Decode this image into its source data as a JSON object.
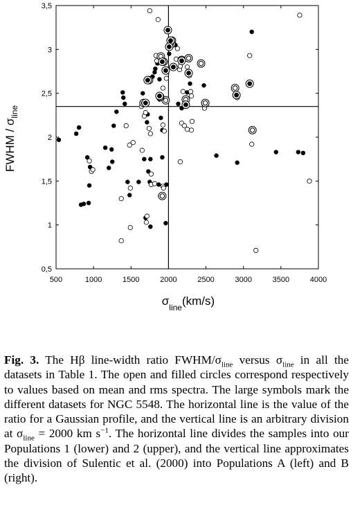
{
  "chart_data": {
    "type": "scatter",
    "ylabel": {
      "main": "FWHM / σ",
      "sub": "line"
    },
    "xlabel": {
      "main": "σ",
      "sub": "line",
      "unit": "(km/s)"
    },
    "xlim": [
      500,
      4000
    ],
    "ylim": [
      0.5,
      3.5
    ],
    "xticks": [
      500,
      1000,
      1500,
      2000,
      2500,
      3000,
      3500,
      4000
    ],
    "yticks": [
      {
        "value": 0.5,
        "label": "0,5"
      },
      1,
      {
        "value": 1.5,
        "label": "1,5"
      },
      2,
      {
        "value": 2.5,
        "label": "2,5"
      },
      3,
      {
        "value": 3.5,
        "label": "3,5"
      }
    ],
    "hline": 2.35,
    "vline": 2000,
    "series": [
      {
        "marker": "filled",
        "color": "#000000",
        "x": [
          537,
          806,
          769,
          917,
          944,
          954,
          833,
          870,
          935,
          1157,
          1204,
          1241,
          1250,
          1269,
          1306,
          1389,
          1398,
          1417,
          1454,
          1481,
          1602,
          1657,
          1676,
          1694,
          1713,
          1722,
          1750,
          1759,
          1759,
          1731,
          1787,
          1815,
          1824,
          1852,
          1880,
          1880,
          1870,
          1889,
          1898,
          1917,
          1917,
          1963,
          1972,
          2009,
          2037,
          2093,
          2130,
          2176,
          2250,
          2287,
          2472,
          2509,
          2639,
          2917,
          3111,
          3731,
          3796,
          3435
        ],
        "values": [
          1.97,
          2.11,
          2.04,
          1.77,
          1.45,
          1.66,
          1.23,
          1.24,
          1.25,
          1.88,
          1.65,
          1.86,
          1.72,
          2.13,
          2.29,
          2.51,
          2.45,
          2.38,
          1.49,
          1.34,
          1.49,
          2.5,
          1.75,
          1.08,
          2.17,
          2.26,
          1.49,
          1.75,
          0.98,
          1.61,
          2.69,
          2.74,
          2.78,
          2.84,
          2.66,
          2.43,
          1.46,
          1.33,
          2.22,
          1.77,
          2.08,
          1.02,
          1.46,
          2.95,
          2.8,
          3.05,
          2.38,
          2.33,
          2.51,
          2.61,
          2.59,
          2.37,
          1.79,
          1.71,
          3.2,
          1.83,
          1.82,
          1.83
        ]
      },
      {
        "marker": "open",
        "color": "#000000",
        "x": [
          1750,
          1861,
          944,
          972,
          991,
          1435,
          1481,
          1528,
          1491,
          1370,
          1370,
          1491,
          1639,
          1648,
          1676,
          1694,
          1713,
          1704,
          1741,
          1759,
          1769,
          1769,
          1815,
          1833,
          1843,
          1926,
          1944,
          1926,
          1935,
          1926,
          1972,
          2102,
          2148,
          2157,
          2194,
          2176,
          2213,
          2250,
          2296,
          2306,
          2315,
          2306,
          2250,
          2278,
          2472,
          2481,
          2917,
          2917,
          3083,
          3111,
          3167,
          3750,
          3880,
          2120,
          2157
        ],
        "values": [
          3.44,
          3.34,
          1.73,
          1.61,
          1.63,
          2.13,
          1.91,
          1.94,
          1.42,
          1.3,
          0.82,
          0.97,
          2.35,
          1.85,
          2.24,
          2.28,
          1.1,
          1.03,
          2.1,
          2.04,
          1.58,
          1.46,
          1.47,
          2.93,
          2.87,
          2.14,
          2.07,
          1.44,
          1.42,
          2.56,
          2.67,
          2.89,
          2.77,
          1.72,
          2.52,
          2.16,
          2.13,
          2.09,
          2.52,
          2.47,
          2.18,
          2.08,
          2.8,
          2.7,
          2.38,
          2.33,
          2.49,
          2.45,
          2.93,
          1.92,
          0.71,
          3.39,
          1.5,
          3.01,
          2.81
        ]
      },
      {
        "marker": "large-open",
        "color": "#000000",
        "x": [
          1898,
          1935,
          1917,
          2046,
          2037,
          2176,
          2269,
          2435,
          1963,
          2231,
          2491,
          2889,
          3120,
          1889,
          1741,
          1667
        ],
        "values": [
          2.92,
          2.86,
          1.33,
          3.1,
          3.06,
          2.88,
          2.9,
          2.84,
          2.42,
          2.43,
          2.39,
          2.56,
          2.08,
          2.46,
          2.65,
          2.39
        ]
      },
      {
        "marker": "large-filled",
        "color": "#000000",
        "x": [
          1722,
          1991,
          2028,
          2009,
          1880,
          1917,
          1963,
          2176,
          2269,
          2231,
          2907,
          3083,
          1694,
          2065
        ],
        "values": [
          2.65,
          3.22,
          3.1,
          3.03,
          2.47,
          2.86,
          2.76,
          2.87,
          2.73,
          2.37,
          2.48,
          2.61,
          2.39,
          2.8
        ]
      }
    ]
  },
  "caption": {
    "label": "Fig. 3.",
    "parts": [
      " The Hβ line-width ratio FWHM/σ",
      {
        "sub": "line"
      },
      " versus σ",
      {
        "sub": "line"
      },
      " in all the datasets in Table 1. The open and filled circles correspond respectively to values based on mean and rms spectra. The large symbols mark the different datasets for NGC 5548. The horizontal line is the value of the ratio for a Gaussian profile, and the vertical line is an arbitrary division at σ",
      {
        "sub": "line"
      },
      " = 2000 km s",
      {
        "sup": "−1"
      },
      ". The horizontal line divides the samples into our Populations 1 (lower) and 2 (upper), and the vertical line approximates the division of Sulentic et al. (2000) into Populations A (left) and B (right)."
    ]
  }
}
